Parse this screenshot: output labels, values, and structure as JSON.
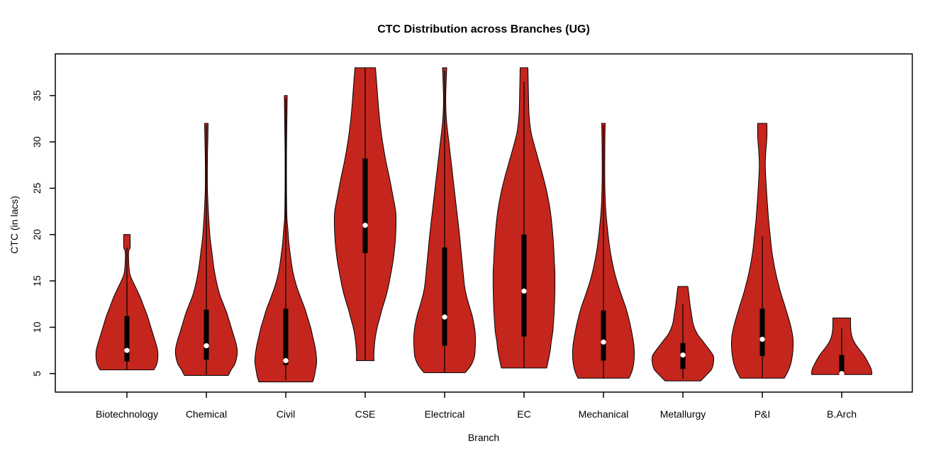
{
  "chart_data": {
    "type": "violin",
    "title": "CTC Distribution across Branches (UG)",
    "xlabel": "Branch",
    "ylabel": "CTC (in lacs)",
    "y_ticks": [
      5,
      10,
      15,
      20,
      25,
      30,
      35
    ],
    "ylim": [
      3.0,
      39.5
    ],
    "grid": false,
    "legend": "none",
    "background_color": "#FFFFFF",
    "fill_color": "#C4261D",
    "outline_color": "#000000",
    "box_color": "#000000",
    "median_dot_color": "#FFFFFF",
    "categories": [
      "Biotechnology",
      "Chemical",
      "Civil",
      "CSE",
      "Electrical",
      "EC",
      "Mechanical",
      "Metallurgy",
      "P&I",
      "B.Arch"
    ],
    "violins": [
      {
        "branch": "Biotechnology",
        "stats": {
          "min": 5.4,
          "max": 20,
          "q1": 6.3,
          "q3": 11.2,
          "median": 7.5,
          "whisker_low": 5.4,
          "whisker_high": 18.6
        },
        "profile": [
          [
            20,
            4.5
          ],
          [
            18.6,
            4.5
          ],
          [
            18.2,
            2.5
          ],
          [
            17,
            2.5
          ],
          [
            15.8,
            4
          ],
          [
            15,
            8
          ],
          [
            14.2,
            13
          ],
          [
            13.2,
            19
          ],
          [
            12.2,
            24
          ],
          [
            11.2,
            29
          ],
          [
            10.2,
            33
          ],
          [
            9.2,
            37
          ],
          [
            8.2,
            41
          ],
          [
            7.4,
            43.5
          ],
          [
            6.6,
            43.5
          ],
          [
            6,
            42
          ],
          [
            5.4,
            38
          ]
        ]
      },
      {
        "branch": "Chemical",
        "stats": {
          "min": 4.8,
          "max": 32,
          "q1": 6.5,
          "q3": 11.9,
          "median": 8.0,
          "whisker_low": 4.9,
          "whisker_high": 31.8
        },
        "profile": [
          [
            32,
            2.5
          ],
          [
            30,
            2
          ],
          [
            28,
            1.5
          ],
          [
            25,
            1.5
          ],
          [
            23,
            2.5
          ],
          [
            21,
            4
          ],
          [
            19.5,
            5.5
          ],
          [
            18,
            8
          ],
          [
            16.5,
            10.5
          ],
          [
            15,
            14
          ],
          [
            13.5,
            19
          ],
          [
            12.5,
            24
          ],
          [
            11.5,
            29
          ],
          [
            10.5,
            33
          ],
          [
            9.5,
            37
          ],
          [
            8.5,
            41
          ],
          [
            7.6,
            43.5
          ],
          [
            6.8,
            43
          ],
          [
            6,
            40
          ],
          [
            5.4,
            35
          ],
          [
            4.8,
            31
          ]
        ]
      },
      {
        "branch": "Civil",
        "stats": {
          "min": 4.1,
          "max": 35,
          "q1": 5.9,
          "q3": 12.0,
          "median": 6.4,
          "whisker_low": 4.3,
          "whisker_high": 34.7
        },
        "profile": [
          [
            35,
            2
          ],
          [
            32,
            1.5
          ],
          [
            29,
            1
          ],
          [
            25,
            1
          ],
          [
            22,
            1.5
          ],
          [
            20.5,
            3
          ],
          [
            19,
            4.5
          ],
          [
            17.5,
            7
          ],
          [
            16,
            10
          ],
          [
            14.5,
            15
          ],
          [
            13,
            22
          ],
          [
            12,
            27
          ],
          [
            11,
            31
          ],
          [
            10,
            35
          ],
          [
            9,
            38
          ],
          [
            8,
            41
          ],
          [
            7,
            43
          ],
          [
            6.2,
            43.5
          ],
          [
            5.4,
            42
          ],
          [
            4.6,
            40
          ],
          [
            4.1,
            38
          ]
        ]
      },
      {
        "branch": "CSE",
        "stats": {
          "min": 6.4,
          "max": 38,
          "q1": 18.0,
          "q3": 28.2,
          "median": 21.0,
          "whisker_low": 6.4,
          "whisker_high": 38
        },
        "profile": [
          [
            38,
            14.5
          ],
          [
            36,
            16.5
          ],
          [
            34,
            18.5
          ],
          [
            32,
            21
          ],
          [
            30,
            24.5
          ],
          [
            28,
            29
          ],
          [
            26,
            34.5
          ],
          [
            24,
            39.5
          ],
          [
            22.5,
            43
          ],
          [
            21.3,
            43.5
          ],
          [
            20,
            43
          ],
          [
            18.5,
            41.5
          ],
          [
            17,
            39
          ],
          [
            15.5,
            35.5
          ],
          [
            14,
            31.5
          ],
          [
            13,
            28
          ],
          [
            12,
            24
          ],
          [
            11,
            20.5
          ],
          [
            10,
            17
          ],
          [
            9,
            14.5
          ],
          [
            8,
            13
          ],
          [
            7,
            12.2
          ],
          [
            6.4,
            12.5
          ]
        ]
      },
      {
        "branch": "Electrical",
        "stats": {
          "min": 5.1,
          "max": 38,
          "q1": 8.0,
          "q3": 18.6,
          "median": 11.1,
          "whisker_low": 5.1,
          "whisker_high": 37.7
        },
        "profile": [
          [
            38,
            3
          ],
          [
            36.5,
            2.2
          ],
          [
            35,
            1.6
          ],
          [
            33.5,
            1.8
          ],
          [
            32,
            3
          ],
          [
            30,
            6
          ],
          [
            28,
            9
          ],
          [
            26,
            12
          ],
          [
            24,
            15
          ],
          [
            22,
            18
          ],
          [
            20,
            21
          ],
          [
            18,
            23.5
          ],
          [
            16,
            26
          ],
          [
            14.5,
            28
          ],
          [
            13.5,
            30.5
          ],
          [
            12.5,
            34
          ],
          [
            11.5,
            38
          ],
          [
            10.5,
            41
          ],
          [
            9.5,
            43
          ],
          [
            8.5,
            43.5
          ],
          [
            7.5,
            43
          ],
          [
            6.8,
            42
          ],
          [
            6,
            38
          ],
          [
            5.5,
            33.5
          ],
          [
            5.1,
            29
          ]
        ]
      },
      {
        "branch": "EC",
        "stats": {
          "min": 5.6,
          "max": 38,
          "q1": 9.0,
          "q3": 20.0,
          "median": 13.9,
          "whisker_low": 5.6,
          "whisker_high": 36.5
        },
        "profile": [
          [
            38,
            5.5
          ],
          [
            36,
            6
          ],
          [
            34,
            6.5
          ],
          [
            32.5,
            7.5
          ],
          [
            31,
            10
          ],
          [
            29.5,
            15
          ],
          [
            28,
            20.5
          ],
          [
            26.5,
            26
          ],
          [
            25,
            31
          ],
          [
            23.5,
            35
          ],
          [
            22,
            38
          ],
          [
            20.5,
            40
          ],
          [
            19,
            41.5
          ],
          [
            17.5,
            42.5
          ],
          [
            16,
            43.5
          ],
          [
            14,
            43.5
          ],
          [
            12.5,
            43
          ],
          [
            11,
            42
          ],
          [
            9.5,
            40.5
          ],
          [
            8.5,
            38.5
          ],
          [
            7.5,
            37
          ],
          [
            6.5,
            34.5
          ],
          [
            5.6,
            32
          ]
        ]
      },
      {
        "branch": "Mechanical",
        "stats": {
          "min": 4.5,
          "max": 32,
          "q1": 6.4,
          "q3": 11.8,
          "median": 8.4,
          "whisker_low": 4.5,
          "whisker_high": 31.8
        },
        "profile": [
          [
            32,
            2.5
          ],
          [
            30,
            2
          ],
          [
            27,
            1.8
          ],
          [
            24.5,
            2.2
          ],
          [
            23,
            3
          ],
          [
            21.5,
            4.5
          ],
          [
            20,
            6.5
          ],
          [
            18.5,
            9
          ],
          [
            17,
            12.5
          ],
          [
            15.5,
            17
          ],
          [
            14,
            23
          ],
          [
            13,
            27.5
          ],
          [
            12,
            32
          ],
          [
            11,
            35.5
          ],
          [
            10,
            38.5
          ],
          [
            9,
            41
          ],
          [
            8,
            43
          ],
          [
            7,
            43.5
          ],
          [
            6,
            42.5
          ],
          [
            5.2,
            40
          ],
          [
            4.5,
            36
          ]
        ]
      },
      {
        "branch": "Metallurgy",
        "stats": {
          "min": 4.2,
          "max": 14.4,
          "q1": 5.5,
          "q3": 8.3,
          "median": 7.0,
          "whisker_low": 4.4,
          "whisker_high": 12.5
        },
        "profile": [
          [
            14.4,
            7
          ],
          [
            13.5,
            8.5
          ],
          [
            12.5,
            10
          ],
          [
            11.5,
            12
          ],
          [
            10.5,
            14
          ],
          [
            9.8,
            17
          ],
          [
            9.2,
            21
          ],
          [
            8.6,
            27
          ],
          [
            8,
            33
          ],
          [
            7.4,
            39
          ],
          [
            6.9,
            43
          ],
          [
            6.4,
            43.5
          ],
          [
            5.9,
            42.5
          ],
          [
            5.4,
            40
          ],
          [
            4.9,
            34
          ],
          [
            4.5,
            29
          ],
          [
            4.2,
            25
          ]
        ]
      },
      {
        "branch": "P&I",
        "stats": {
          "min": 4.5,
          "max": 32,
          "q1": 6.9,
          "q3": 12.0,
          "median": 8.7,
          "whisker_low": 4.6,
          "whisker_high": 19.8
        },
        "profile": [
          [
            32,
            6.5
          ],
          [
            30.5,
            6.5
          ],
          [
            29,
            5
          ],
          [
            27.5,
            4.2
          ],
          [
            26,
            5
          ],
          [
            24.5,
            6.2
          ],
          [
            23,
            7.5
          ],
          [
            21.5,
            9
          ],
          [
            20,
            11
          ],
          [
            18.5,
            13
          ],
          [
            17,
            16
          ],
          [
            15.5,
            20
          ],
          [
            14,
            25
          ],
          [
            12.5,
            31
          ],
          [
            11,
            37
          ],
          [
            10,
            40.5
          ],
          [
            9,
            43
          ],
          [
            8,
            43.5
          ],
          [
            7,
            42.5
          ],
          [
            6,
            40
          ],
          [
            5.2,
            36
          ],
          [
            4.5,
            31
          ]
        ]
      },
      {
        "branch": "B.Arch",
        "stats": {
          "min": 4.9,
          "max": 11,
          "q1": 4.9,
          "q3": 7.0,
          "median": 5.0,
          "whisker_low": 4.9,
          "whisker_high": 9.9
        },
        "profile": [
          [
            11,
            12.5
          ],
          [
            10.3,
            12.5
          ],
          [
            9.6,
            13
          ],
          [
            9,
            14.5
          ],
          [
            8.5,
            17
          ],
          [
            8,
            21
          ],
          [
            7.5,
            26
          ],
          [
            7,
            31
          ],
          [
            6.5,
            35
          ],
          [
            6,
            38.5
          ],
          [
            5.5,
            41.5
          ],
          [
            5.1,
            42.5
          ],
          [
            4.9,
            42.5
          ]
        ]
      }
    ]
  }
}
